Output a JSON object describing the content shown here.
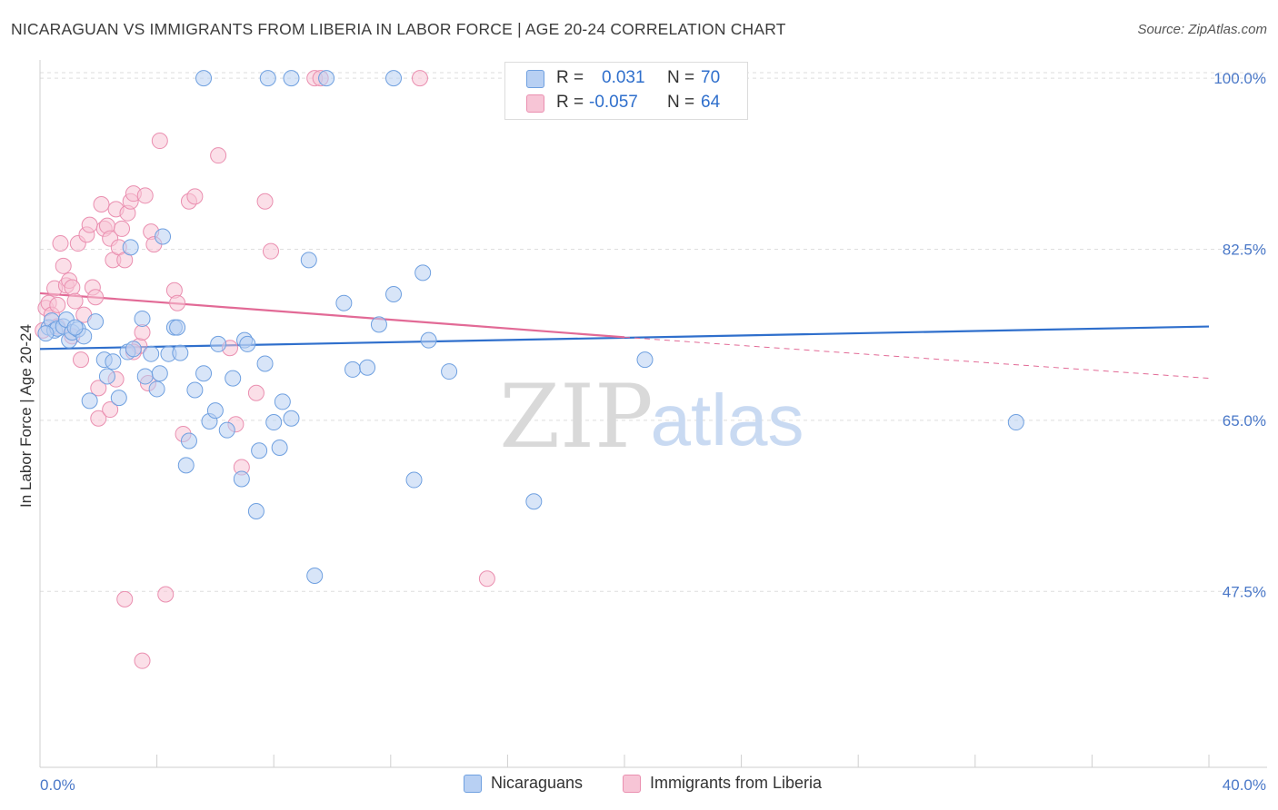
{
  "title": "NICARAGUAN VS IMMIGRANTS FROM LIBERIA IN LABOR FORCE | AGE 20-24 CORRELATION CHART",
  "source": "Source: ZipAtlas.com",
  "watermark": {
    "zip": "ZIP",
    "atlas": "atlas"
  },
  "colors": {
    "blue": "#6fa0e0",
    "blue_fill": "#b8d0f3",
    "blue_line": "#2f6fcc",
    "pink": "#ea8fb0",
    "pink_fill": "#f7c5d6",
    "pink_line": "#e26a96",
    "axis_text": "#4a78c8"
  },
  "legend_top": {
    "rows": [
      {
        "r_label": "R =",
        "r_value": "0.031",
        "n_label": "N =",
        "n_value": "70"
      },
      {
        "r_label": "R =",
        "r_value": "-0.057",
        "n_label": "N =",
        "n_value": "64"
      }
    ]
  },
  "legend_bottom": [
    {
      "label": "Nicaraguans"
    },
    {
      "label": "Immigrants from Liberia"
    }
  ],
  "chart_data": {
    "type": "scatter",
    "title": "NICARAGUAN VS IMMIGRANTS FROM LIBERIA IN LABOR FORCE | AGE 20-24 CORRELATION CHART",
    "xlabel": "",
    "ylabel": "In Labor Force | Age 20-24",
    "xlim": [
      0,
      40
    ],
    "ylim": [
      29.5,
      101.5
    ],
    "x_tick_labels": [
      "0.0%",
      "40.0%"
    ],
    "y_ticks": [
      47.5,
      65.0,
      82.5,
      100.0
    ],
    "y_tick_labels": [
      "47.5%",
      "65.0%",
      "82.5%",
      "100.0%"
    ],
    "grid": true,
    "legend_position": "top-center",
    "series": [
      {
        "name": "Nicaraguans",
        "r": 0.031,
        "n": 70,
        "trend": {
          "x": [
            0,
            40
          ],
          "y": [
            72.3,
            74.6
          ]
        },
        "points": [
          [
            0.3,
            74.5
          ],
          [
            0.4,
            75.2
          ],
          [
            0.5,
            74.2
          ],
          [
            0.6,
            74.4
          ],
          [
            0.8,
            74.6
          ],
          [
            0.9,
            75.3
          ],
          [
            1.0,
            73.2
          ],
          [
            1.1,
            74.0
          ],
          [
            1.3,
            74.3
          ],
          [
            1.5,
            73.6
          ],
          [
            1.7,
            67.0
          ],
          [
            1.9,
            75.1
          ],
          [
            2.2,
            71.2
          ],
          [
            2.3,
            69.5
          ],
          [
            2.5,
            71.0
          ],
          [
            2.7,
            67.3
          ],
          [
            3.0,
            72.0
          ],
          [
            3.1,
            82.7
          ],
          [
            3.2,
            72.3
          ],
          [
            3.5,
            75.4
          ],
          [
            3.6,
            69.5
          ],
          [
            3.8,
            71.8
          ],
          [
            4.0,
            68.2
          ],
          [
            4.1,
            69.8
          ],
          [
            4.2,
            83.8
          ],
          [
            4.4,
            71.8
          ],
          [
            4.6,
            74.5
          ],
          [
            4.7,
            74.5
          ],
          [
            4.8,
            71.9
          ],
          [
            5.0,
            60.4
          ],
          [
            5.1,
            62.9
          ],
          [
            5.3,
            68.1
          ],
          [
            5.6,
            69.8
          ],
          [
            5.8,
            64.9
          ],
          [
            6.0,
            66.0
          ],
          [
            6.1,
            72.8
          ],
          [
            6.4,
            64.0
          ],
          [
            6.6,
            69.3
          ],
          [
            6.9,
            59.0
          ],
          [
            7.0,
            73.2
          ],
          [
            7.1,
            72.8
          ],
          [
            7.4,
            55.7
          ],
          [
            7.5,
            61.9
          ],
          [
            7.7,
            70.8
          ],
          [
            8.0,
            64.8
          ],
          [
            8.2,
            62.2
          ],
          [
            8.3,
            66.9
          ],
          [
            8.6,
            65.2
          ],
          [
            9.2,
            81.4
          ],
          [
            9.4,
            49.1
          ],
          [
            10.4,
            77.0
          ],
          [
            10.7,
            70.2
          ],
          [
            11.2,
            70.4
          ],
          [
            11.6,
            74.8
          ],
          [
            12.1,
            77.9
          ],
          [
            12.8,
            58.9
          ],
          [
            13.1,
            80.1
          ],
          [
            13.3,
            73.2
          ],
          [
            14.0,
            70.0
          ],
          [
            16.9,
            56.7
          ],
          [
            20.7,
            71.2
          ],
          [
            33.4,
            64.8
          ],
          [
            5.6,
            100.0
          ],
          [
            7.8,
            100.0
          ],
          [
            8.6,
            100.0
          ],
          [
            9.8,
            100.0
          ],
          [
            12.1,
            100.0
          ],
          [
            21.0,
            100.0
          ],
          [
            0.2,
            73.9
          ],
          [
            1.2,
            74.5
          ]
        ]
      },
      {
        "name": "Immigrants from Liberia",
        "r": -0.057,
        "n": 64,
        "trend": {
          "x": [
            0,
            20
          ],
          "y": [
            78.0,
            73.5
          ]
        },
        "trend_dashed": {
          "x": [
            20,
            40
          ],
          "y": [
            73.5,
            69.3
          ]
        },
        "points": [
          [
            0.1,
            74.2
          ],
          [
            0.2,
            76.5
          ],
          [
            0.3,
            77.0
          ],
          [
            0.4,
            75.8
          ],
          [
            0.5,
            78.5
          ],
          [
            0.6,
            76.8
          ],
          [
            0.7,
            83.1
          ],
          [
            0.8,
            80.8
          ],
          [
            0.9,
            78.8
          ],
          [
            1.0,
            79.3
          ],
          [
            1.1,
            78.6
          ],
          [
            1.2,
            77.2
          ],
          [
            1.3,
            83.1
          ],
          [
            1.4,
            71.2
          ],
          [
            1.5,
            75.8
          ],
          [
            1.6,
            84.0
          ],
          [
            1.7,
            85.0
          ],
          [
            1.8,
            78.6
          ],
          [
            1.9,
            77.6
          ],
          [
            2.0,
            68.3
          ],
          [
            2.1,
            87.1
          ],
          [
            2.2,
            84.6
          ],
          [
            2.3,
            84.9
          ],
          [
            2.4,
            83.6
          ],
          [
            2.5,
            81.4
          ],
          [
            2.6,
            86.6
          ],
          [
            2.7,
            82.7
          ],
          [
            2.8,
            84.6
          ],
          [
            2.9,
            81.4
          ],
          [
            3.0,
            86.2
          ],
          [
            3.1,
            87.4
          ],
          [
            3.2,
            88.2
          ],
          [
            3.4,
            72.6
          ],
          [
            3.5,
            74.0
          ],
          [
            3.6,
            88.0
          ],
          [
            3.7,
            68.8
          ],
          [
            3.8,
            84.3
          ],
          [
            3.9,
            83.0
          ],
          [
            4.1,
            93.6
          ],
          [
            4.3,
            47.2
          ],
          [
            4.6,
            78.3
          ],
          [
            4.7,
            77.0
          ],
          [
            4.9,
            63.6
          ],
          [
            5.1,
            87.4
          ],
          [
            5.3,
            87.9
          ],
          [
            6.1,
            92.1
          ],
          [
            6.5,
            72.4
          ],
          [
            6.7,
            64.6
          ],
          [
            6.9,
            60.2
          ],
          [
            7.4,
            67.8
          ],
          [
            7.7,
            87.4
          ],
          [
            7.9,
            82.3
          ],
          [
            9.4,
            100.0
          ],
          [
            9.6,
            100.0
          ],
          [
            13.0,
            100.0
          ],
          [
            15.3,
            48.8
          ],
          [
            2.0,
            65.2
          ],
          [
            2.4,
            66.1
          ],
          [
            3.5,
            40.4
          ],
          [
            2.9,
            46.7
          ],
          [
            0.6,
            74.6
          ],
          [
            1.1,
            73.6
          ],
          [
            3.2,
            72.0
          ],
          [
            2.6,
            69.2
          ]
        ]
      }
    ]
  }
}
